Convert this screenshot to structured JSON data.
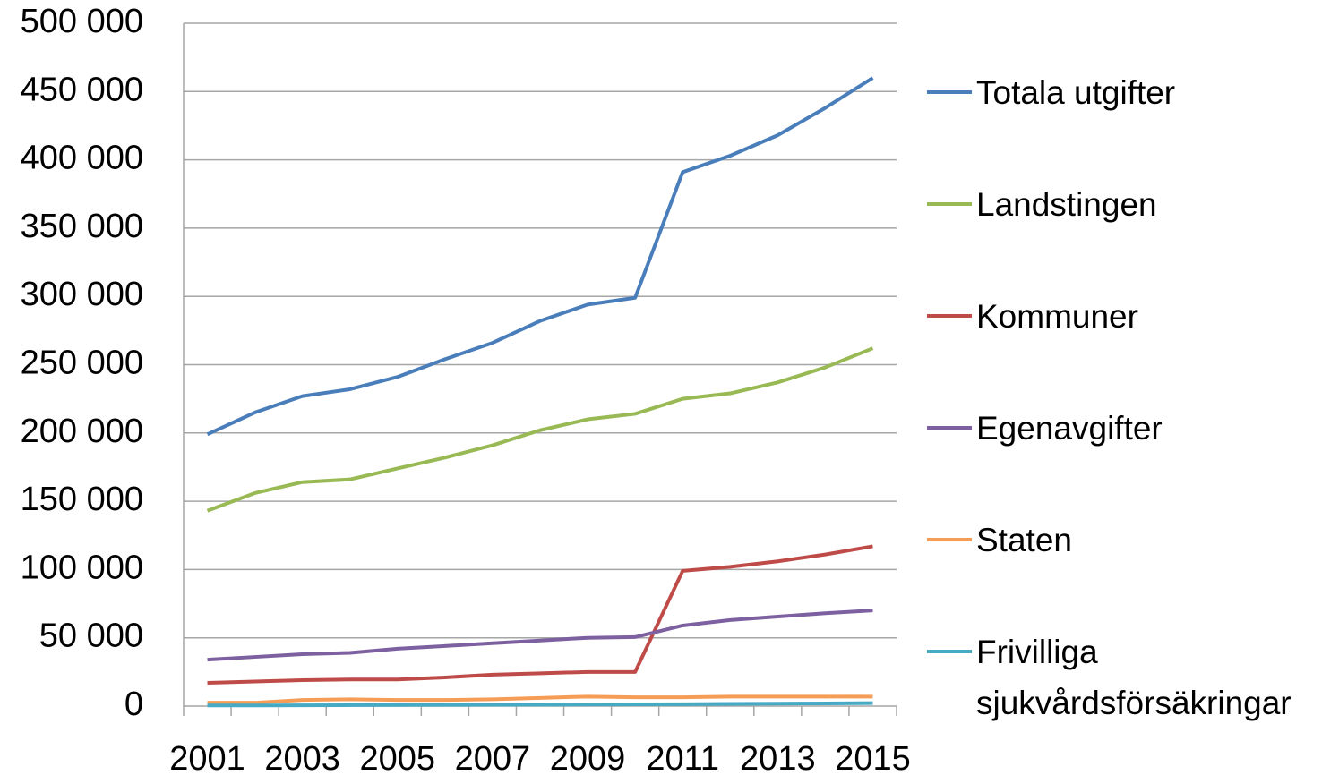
{
  "chart_data": {
    "type": "line",
    "categories": [
      "2001",
      null,
      "2003",
      null,
      "2005",
      null,
      "2007",
      null,
      "2009",
      null,
      "2011",
      null,
      "2013",
      null,
      "2015"
    ],
    "series": [
      {
        "name": "Totala utgifter",
        "color": "#4a7ebb",
        "values": [
          199000,
          215000,
          227000,
          232000,
          241000,
          254000,
          266000,
          282000,
          294000,
          299000,
          391000,
          403000,
          418000,
          438000,
          460000
        ]
      },
      {
        "name": "Landstingen",
        "color": "#98b954",
        "values": [
          143000,
          156000,
          164000,
          166000,
          174000,
          182000,
          191000,
          202000,
          210000,
          214000,
          225000,
          229000,
          237000,
          248000,
          262000
        ]
      },
      {
        "name": "Kommuner",
        "color": "#be4b48",
        "values": [
          17000,
          18000,
          19000,
          19500,
          19500,
          21000,
          23000,
          24000,
          25000,
          25000,
          99000,
          102000,
          106000,
          111000,
          117000
        ]
      },
      {
        "name": "Egenavgifter",
        "color": "#7d60a0",
        "values": [
          34000,
          36000,
          38000,
          39000,
          42000,
          44000,
          46000,
          48000,
          50000,
          50500,
          59000,
          63000,
          65500,
          68000,
          70000
        ]
      },
      {
        "name": "Staten",
        "color": "#f59d56",
        "values": [
          2500,
          2500,
          4500,
          5000,
          4500,
          4500,
          5000,
          6000,
          7000,
          6500,
          6500,
          7000,
          7000,
          7000,
          7000
        ]
      },
      {
        "name": "Frivilliga sjukvårdsförsäkringar",
        "color": "#46aac5",
        "values": [
          500,
          500,
          600,
          700,
          800,
          900,
          1000,
          1100,
          1200,
          1300,
          1400,
          1600,
          1800,
          2000,
          2200
        ]
      }
    ],
    "ylim": [
      0,
      500000
    ],
    "yticks": [
      0,
      {
        "value": 50000,
        "label": "50 000"
      },
      {
        "value": 100000,
        "label": "100 000"
      },
      {
        "value": 150000,
        "label": "150 000"
      },
      {
        "value": 200000,
        "label": "200 000"
      },
      {
        "value": 250000,
        "label": "250 000"
      },
      {
        "value": 300000,
        "label": "300 000"
      },
      {
        "value": 350000,
        "label": "350 000"
      },
      {
        "value": 400000,
        "label": "400 000"
      },
      {
        "value": 450000,
        "label": "450 000"
      },
      {
        "value": 500000,
        "label": "500 000"
      }
    ],
    "grid": true,
    "legend": "right"
  }
}
